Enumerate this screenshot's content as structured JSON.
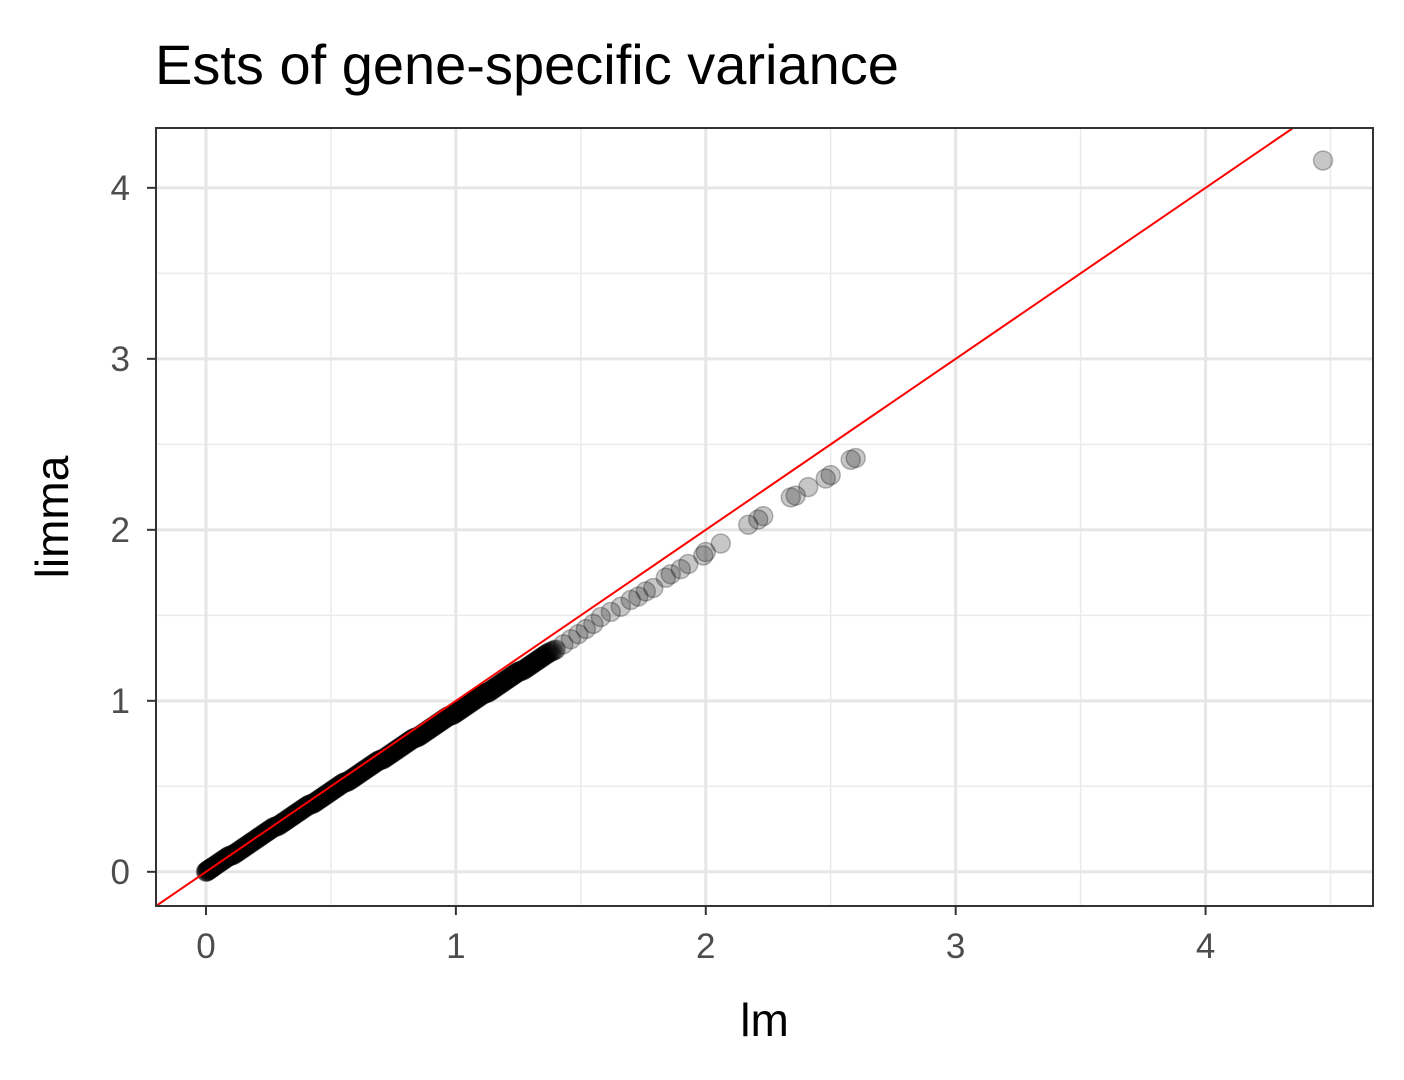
{
  "chart_data": {
    "type": "scatter",
    "title": "Ests of gene-specific variance",
    "xlabel": "lm",
    "ylabel": "limma",
    "xlim": [
      -0.2,
      4.67
    ],
    "ylim": [
      -0.2,
      4.35
    ],
    "x_ticks": [
      "0",
      "1",
      "2",
      "3",
      "4"
    ],
    "y_ticks": [
      "0",
      "1",
      "2",
      "3",
      "4"
    ],
    "grid": true,
    "legend": "none",
    "reference_line": {
      "intercept": 0,
      "slope": 1,
      "color": "#ff0000"
    },
    "point_color": "#000000",
    "point_opacity": 0.22,
    "series": [
      {
        "points": [
          [
            0.0,
            0.0
          ],
          [
            0.01,
            0.01
          ],
          [
            0.02,
            0.02
          ],
          [
            0.03,
            0.03
          ],
          [
            0.05,
            0.05
          ],
          [
            0.07,
            0.07
          ],
          [
            0.09,
            0.09
          ],
          [
            0.11,
            0.1
          ],
          [
            0.13,
            0.12
          ],
          [
            0.15,
            0.14
          ],
          [
            0.17,
            0.16
          ],
          [
            0.19,
            0.18
          ],
          [
            0.21,
            0.2
          ],
          [
            0.23,
            0.22
          ],
          [
            0.25,
            0.24
          ],
          [
            0.27,
            0.26
          ],
          [
            0.29,
            0.27
          ],
          [
            0.31,
            0.29
          ],
          [
            0.33,
            0.31
          ],
          [
            0.35,
            0.33
          ],
          [
            0.37,
            0.35
          ],
          [
            0.39,
            0.37
          ],
          [
            0.41,
            0.39
          ],
          [
            0.43,
            0.4
          ],
          [
            0.45,
            0.42
          ],
          [
            0.47,
            0.44
          ],
          [
            0.49,
            0.46
          ],
          [
            0.51,
            0.48
          ],
          [
            0.53,
            0.5
          ],
          [
            0.55,
            0.52
          ],
          [
            0.57,
            0.53
          ],
          [
            0.59,
            0.55
          ],
          [
            0.61,
            0.57
          ],
          [
            0.63,
            0.59
          ],
          [
            0.65,
            0.61
          ],
          [
            0.67,
            0.63
          ],
          [
            0.69,
            0.65
          ],
          [
            0.71,
            0.66
          ],
          [
            0.73,
            0.68
          ],
          [
            0.75,
            0.7
          ],
          [
            0.77,
            0.72
          ],
          [
            0.79,
            0.74
          ],
          [
            0.81,
            0.76
          ],
          [
            0.83,
            0.78
          ],
          [
            0.85,
            0.79
          ],
          [
            0.87,
            0.81
          ],
          [
            0.89,
            0.83
          ],
          [
            0.91,
            0.85
          ],
          [
            0.93,
            0.87
          ],
          [
            0.95,
            0.89
          ],
          [
            0.97,
            0.91
          ],
          [
            0.99,
            0.92
          ],
          [
            1.01,
            0.94
          ],
          [
            1.03,
            0.96
          ],
          [
            1.05,
            0.98
          ],
          [
            1.07,
            1.0
          ],
          [
            1.09,
            1.02
          ],
          [
            1.11,
            1.04
          ],
          [
            1.13,
            1.05
          ],
          [
            1.15,
            1.07
          ],
          [
            1.17,
            1.09
          ],
          [
            1.19,
            1.11
          ],
          [
            1.21,
            1.13
          ],
          [
            1.23,
            1.15
          ],
          [
            1.25,
            1.17
          ],
          [
            1.27,
            1.18
          ],
          [
            1.29,
            1.2
          ],
          [
            1.31,
            1.22
          ],
          [
            1.33,
            1.24
          ],
          [
            1.35,
            1.26
          ],
          [
            1.37,
            1.28
          ],
          [
            1.4,
            1.3
          ],
          [
            1.43,
            1.33
          ],
          [
            1.46,
            1.36
          ],
          [
            1.49,
            1.39
          ],
          [
            1.52,
            1.42
          ],
          [
            1.55,
            1.45
          ],
          [
            1.58,
            1.49
          ],
          [
            1.62,
            1.52
          ],
          [
            1.66,
            1.55
          ],
          [
            1.7,
            1.59
          ],
          [
            1.73,
            1.61
          ],
          [
            1.76,
            1.64
          ],
          [
            1.79,
            1.66
          ],
          [
            1.84,
            1.72
          ],
          [
            1.86,
            1.74
          ],
          [
            1.9,
            1.77
          ],
          [
            1.93,
            1.8
          ],
          [
            1.99,
            1.85
          ],
          [
            2.0,
            1.87
          ],
          [
            2.06,
            1.92
          ],
          [
            2.17,
            2.03
          ],
          [
            2.21,
            2.06
          ],
          [
            2.23,
            2.08
          ],
          [
            2.34,
            2.19
          ],
          [
            2.36,
            2.2
          ],
          [
            2.41,
            2.25
          ],
          [
            2.48,
            2.3
          ],
          [
            2.5,
            2.32
          ],
          [
            2.58,
            2.41
          ],
          [
            2.6,
            2.42
          ],
          [
            4.47,
            4.16
          ]
        ]
      }
    ]
  }
}
